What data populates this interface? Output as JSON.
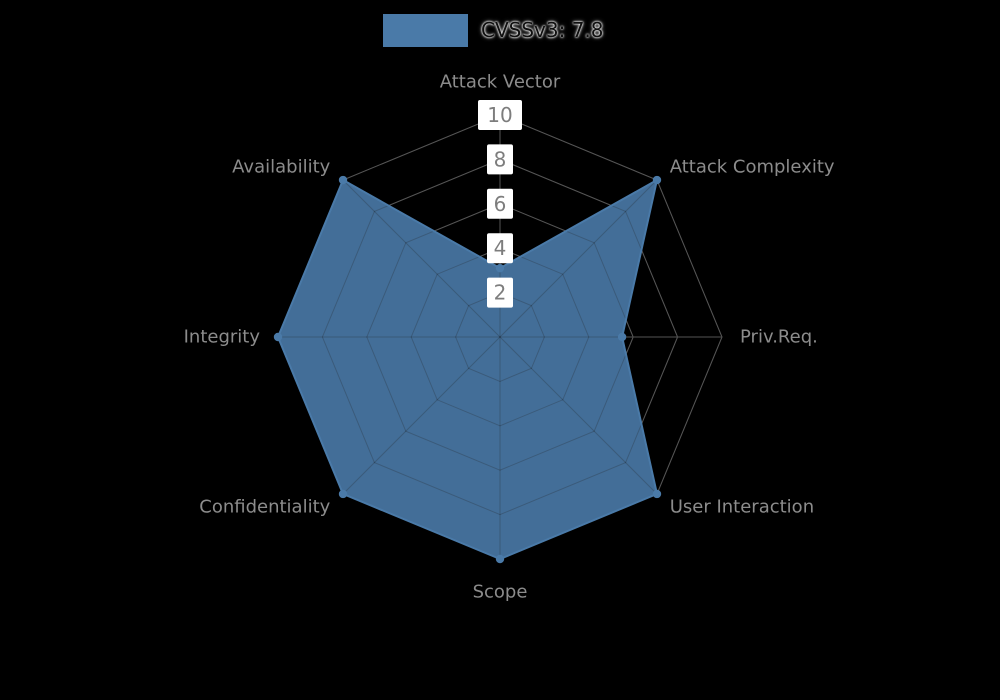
{
  "legend": {
    "label": "CVSSv3: 7.8",
    "swatch_color": "#4a7aa8"
  },
  "chart_data": {
    "type": "radar",
    "title": "CVSSv3: 7.8",
    "axes": [
      "Attack Vector",
      "Attack Complexity",
      "Priv.Req.",
      "User Interaction",
      "Scope",
      "Confidentiality",
      "Integrity",
      "Availability"
    ],
    "series": [
      {
        "name": "CVSSv3: 7.8",
        "values": [
          3.1,
          10,
          5.5,
          10,
          10,
          10,
          10,
          10
        ],
        "color": "#4a7aa8"
      }
    ],
    "scale": {
      "min": 0,
      "max": 10,
      "ticks": [
        2,
        4,
        6,
        8,
        10
      ]
    },
    "grid": {
      "shape": "polygon",
      "spokes": 8,
      "color": "#8f8f8f"
    },
    "label_color": "#8c8c8c",
    "tick_style": {
      "bg": "#ffffff",
      "color": "#7d7d7d"
    },
    "legend_position": "top"
  }
}
